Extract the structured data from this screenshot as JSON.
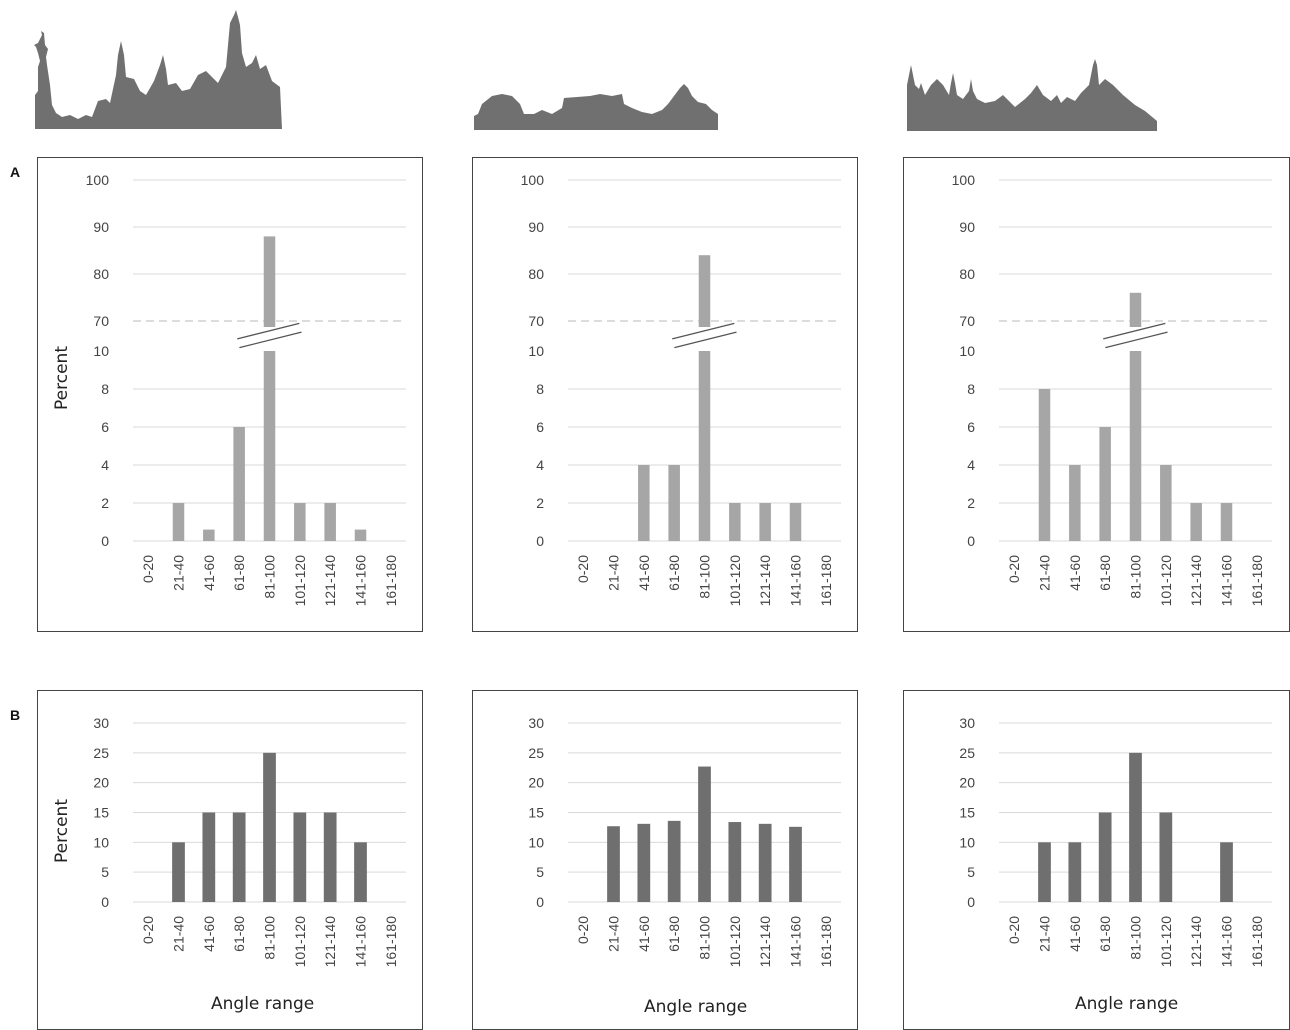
{
  "panel_letters": {
    "a": "A",
    "b": "B"
  },
  "skylines": [
    {
      "name": "new-york-skyline",
      "color": "#707070"
    },
    {
      "name": "rome-skyline",
      "color": "#707070"
    },
    {
      "name": "cairo-skyline",
      "color": "#707070"
    }
  ],
  "chart_data": [
    {
      "type": "bar",
      "panel": "A",
      "city": "new-york",
      "categories": [
        "0-20",
        "21-40",
        "41-60",
        "61-80",
        "81-100",
        "101-120",
        "121-140",
        "141-160",
        "161-180"
      ],
      "values": [
        0,
        2,
        0.6,
        6,
        88,
        2,
        2,
        0.6,
        0
      ],
      "ylabel": "Percent",
      "xlabel": "",
      "axis_break": {
        "lower": [
          0,
          10
        ],
        "upper": [
          70,
          100
        ]
      },
      "lower_ticks": [
        "0",
        "2",
        "4",
        "6",
        "8",
        "10"
      ],
      "upper_ticks": [
        "70",
        "80",
        "90",
        "100"
      ],
      "bar_color": "#a6a6a6",
      "grid": true
    },
    {
      "type": "bar",
      "panel": "A",
      "city": "rome",
      "categories": [
        "0-20",
        "21-40",
        "41-60",
        "61-80",
        "81-100",
        "101-120",
        "121-140",
        "141-160",
        "161-180"
      ],
      "values": [
        0,
        0,
        4,
        4,
        84,
        2,
        2,
        2,
        0
      ],
      "ylabel": "",
      "xlabel": "",
      "axis_break": {
        "lower": [
          0,
          10
        ],
        "upper": [
          70,
          100
        ]
      },
      "lower_ticks": [
        "0",
        "2",
        "4",
        "6",
        "8",
        "10"
      ],
      "upper_ticks": [
        "70",
        "80",
        "90",
        "100"
      ],
      "bar_color": "#a6a6a6",
      "grid": true
    },
    {
      "type": "bar",
      "panel": "A",
      "city": "cairo",
      "categories": [
        "0-20",
        "21-40",
        "41-60",
        "61-80",
        "81-100",
        "101-120",
        "121-140",
        "141-160",
        "161-180"
      ],
      "values": [
        0,
        8,
        4,
        6,
        76,
        4,
        2,
        2,
        0
      ],
      "ylabel": "",
      "xlabel": "",
      "axis_break": {
        "lower": [
          0,
          10
        ],
        "upper": [
          70,
          100
        ]
      },
      "lower_ticks": [
        "0",
        "2",
        "4",
        "6",
        "8",
        "10"
      ],
      "upper_ticks": [
        "70",
        "80",
        "90",
        "100"
      ],
      "bar_color": "#a6a6a6",
      "grid": true
    },
    {
      "type": "bar",
      "panel": "B",
      "city": "new-york",
      "categories": [
        "0-20",
        "21-40",
        "41-60",
        "61-80",
        "81-100",
        "101-120",
        "121-140",
        "141-160",
        "161-180"
      ],
      "values": [
        0,
        10,
        15,
        15,
        25,
        15,
        15,
        10,
        0
      ],
      "ylabel": "Percent",
      "xlabel": "Angle range",
      "ylim": [
        0,
        30
      ],
      "yticks": [
        "0",
        "5",
        "10",
        "15",
        "20",
        "25",
        "30"
      ],
      "bar_color": "#6f6f6f",
      "grid": true
    },
    {
      "type": "bar",
      "panel": "B",
      "city": "rome",
      "categories": [
        "0-20",
        "21-40",
        "41-60",
        "61-80",
        "81-100",
        "101-120",
        "121-140",
        "141-160",
        "161-180"
      ],
      "values": [
        0,
        12.7,
        13.1,
        13.6,
        22.7,
        13.4,
        13.1,
        12.6,
        0
      ],
      "ylabel": "",
      "xlabel": "Angle range",
      "ylim": [
        0,
        30
      ],
      "yticks": [
        "0",
        "5",
        "10",
        "15",
        "20",
        "25",
        "30"
      ],
      "bar_color": "#6f6f6f",
      "grid": true
    },
    {
      "type": "bar",
      "panel": "B",
      "city": "cairo",
      "categories": [
        "0-20",
        "21-40",
        "41-60",
        "61-80",
        "81-100",
        "101-120",
        "121-140",
        "141-160",
        "161-180"
      ],
      "values": [
        0,
        10,
        10,
        15,
        25,
        15,
        0,
        10,
        0
      ],
      "ylabel": "",
      "xlabel": "Angle range",
      "ylim": [
        0,
        30
      ],
      "yticks": [
        "0",
        "5",
        "10",
        "15",
        "20",
        "25",
        "30"
      ],
      "bar_color": "#6f6f6f",
      "grid": true
    }
  ]
}
